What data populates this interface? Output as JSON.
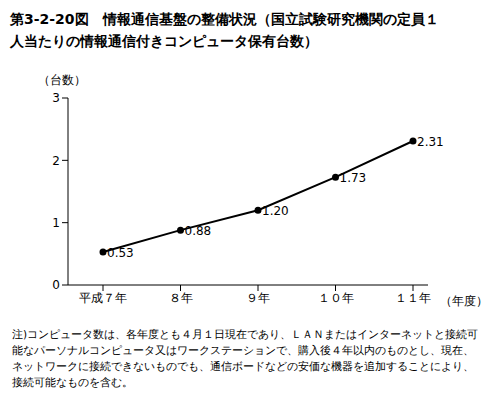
{
  "chart_data": {
    "type": "line",
    "title": "第3-2-20図　情報通信基盤の整備状況（国立試験研究機関の定員１人当たりの情報通信付きコンピュータ保有台数）",
    "y_label": "（台数）",
    "x_label": "（年度）",
    "categories": [
      "平成７年",
      "８年",
      "９年",
      "１０年",
      "１１年"
    ],
    "values": [
      0.53,
      0.88,
      1.2,
      1.73,
      2.31
    ],
    "value_labels": [
      "0.53",
      "0.88",
      "1.20",
      "1.73",
      "2.31"
    ],
    "data_labels": true,
    "color": "#000000",
    "marker": "circle",
    "line_style": "solid",
    "grid": false,
    "ylim": [
      0,
      3
    ],
    "yticks": [
      0,
      1,
      2,
      3
    ],
    "note": "注)コンピュータ数は、各年度とも４月１日現在であり、ＬＡＮまたはインターネットと接続可能なパーソナルコンピュータ又はワークステーションで、購入後４年以内のものとし、現在、ネットワークに接続できないものでも、通信ボードなどの安価な機器を追加することにより、接続可能なものを含む。"
  }
}
